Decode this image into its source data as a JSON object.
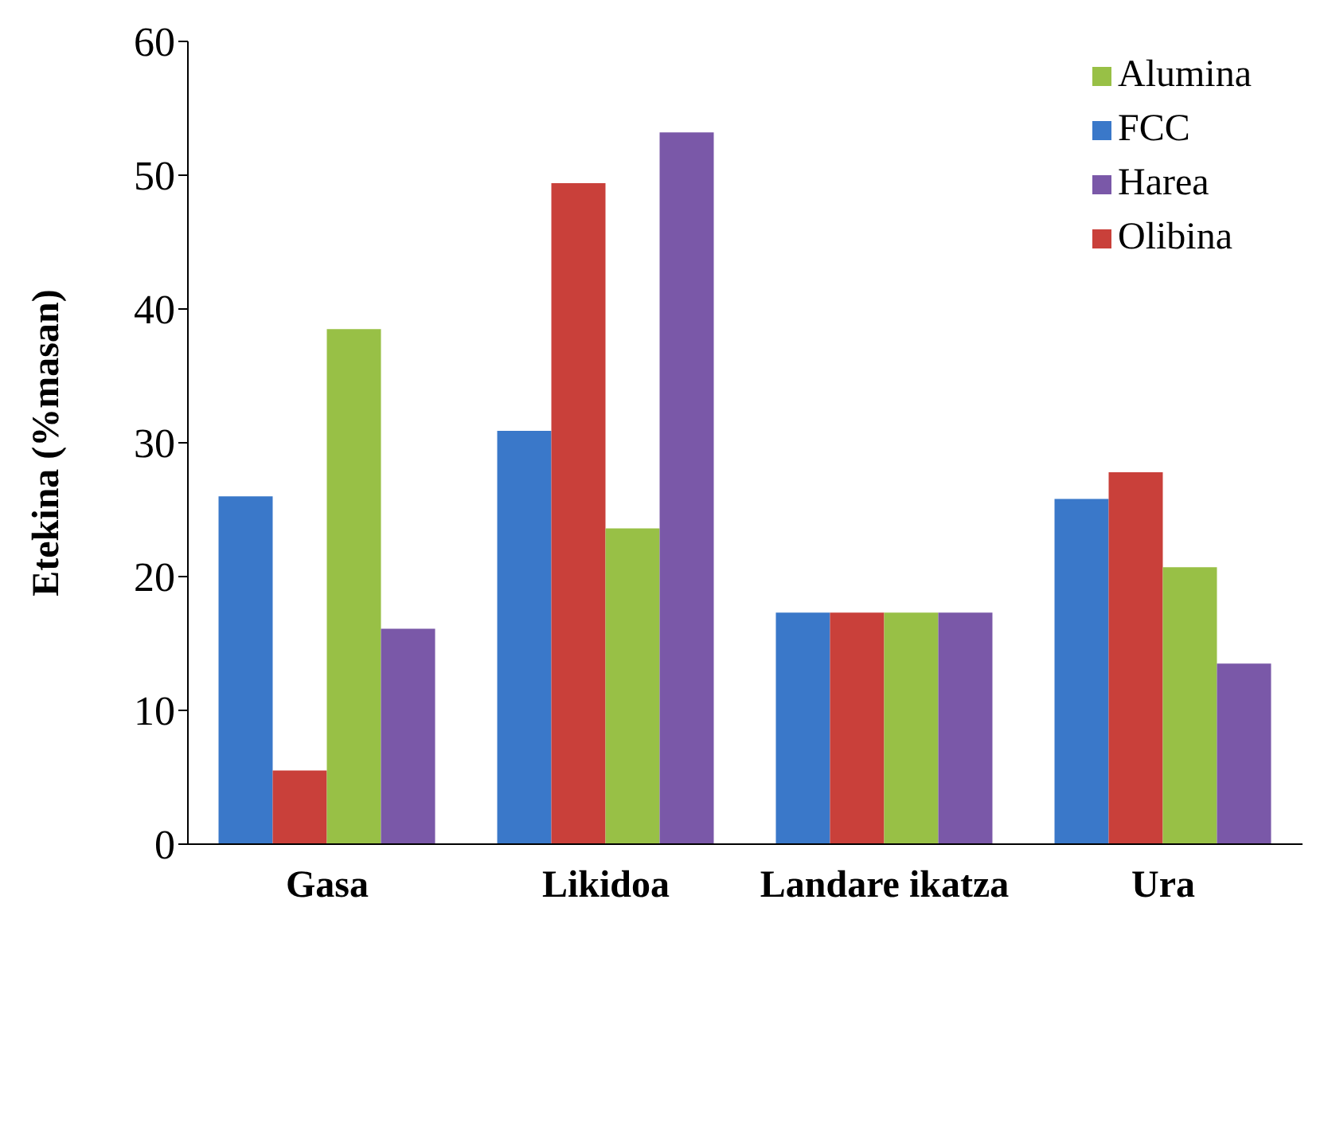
{
  "chart_data": {
    "type": "bar",
    "ylabel": "Etekina (%masan)",
    "categories": [
      "Gasa",
      "Likidoa",
      "Landare ikatza",
      "Ura"
    ],
    "series": [
      {
        "name": "FCC",
        "color": "#3a78c9",
        "values": [
          26.0,
          30.9,
          17.3,
          25.8
        ]
      },
      {
        "name": "Olibina",
        "color": "#c9403a",
        "values": [
          5.5,
          49.4,
          17.3,
          27.8
        ]
      },
      {
        "name": "Alumina",
        "color": "#98c046",
        "values": [
          38.5,
          23.6,
          17.3,
          20.7
        ]
      },
      {
        "name": "Harea",
        "color": "#7a58a8",
        "values": [
          16.1,
          53.2,
          17.3,
          13.5
        ]
      }
    ],
    "ylim": [
      0,
      60
    ],
    "yticks": [
      0,
      10,
      20,
      30,
      40,
      50,
      60
    ],
    "grid": false,
    "legend": "top right"
  }
}
